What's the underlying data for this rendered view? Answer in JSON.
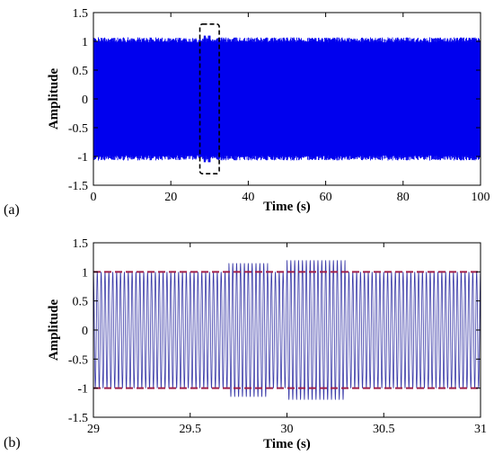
{
  "chart_data": [
    {
      "id": "a",
      "panel_label": "(a)",
      "type": "line",
      "title": "",
      "xlabel": "Time (s)",
      "ylabel": "Amplitude",
      "xlim": [
        0,
        100
      ],
      "ylim": [
        -1.5,
        1.5
      ],
      "xticks": [
        0,
        20,
        40,
        60,
        80,
        100
      ],
      "yticks": [
        -1.5,
        -1,
        -0.5,
        0,
        0.5,
        1,
        1.5
      ],
      "grid": false,
      "series": [
        {
          "color": "#0000ee",
          "signal": "dense oscillation",
          "base_amplitude": 1.0,
          "peak_amplitude": 1.1,
          "x_range": [
            0,
            100
          ]
        }
      ],
      "annotations": [
        {
          "type": "dashed-box",
          "color": "#000000",
          "x_range": [
            27.5,
            32.5
          ],
          "y_range": [
            -1.3,
            1.3
          ]
        }
      ]
    },
    {
      "id": "b",
      "panel_label": "(b)",
      "type": "line",
      "title": "",
      "xlabel": "Time (s)",
      "ylabel": "Amplitude",
      "xlim": [
        29,
        31
      ],
      "ylim": [
        -1.5,
        1.5
      ],
      "xticks": [
        29,
        29.5,
        30,
        30.5,
        31
      ],
      "yticks": [
        -1.5,
        -1,
        -0.5,
        0,
        0.5,
        1,
        1.5
      ],
      "grid": false,
      "series": [
        {
          "color": "#3a3aa8",
          "signal": "sinusoid",
          "cycles_per_second": 50,
          "base_amplitude": 1.0,
          "amplitude_segments": [
            {
              "x_range": [
                29.7,
                29.9
              ],
              "amplitude": 1.15
            },
            {
              "x_range": [
                30.0,
                30.3
              ],
              "amplitude": 1.2
            }
          ]
        }
      ],
      "reference_lines": [
        {
          "y": 1.0,
          "color": "#a0204a",
          "style": "dashed"
        },
        {
          "y": -1.0,
          "color": "#a0204a",
          "style": "dashed"
        }
      ]
    }
  ]
}
